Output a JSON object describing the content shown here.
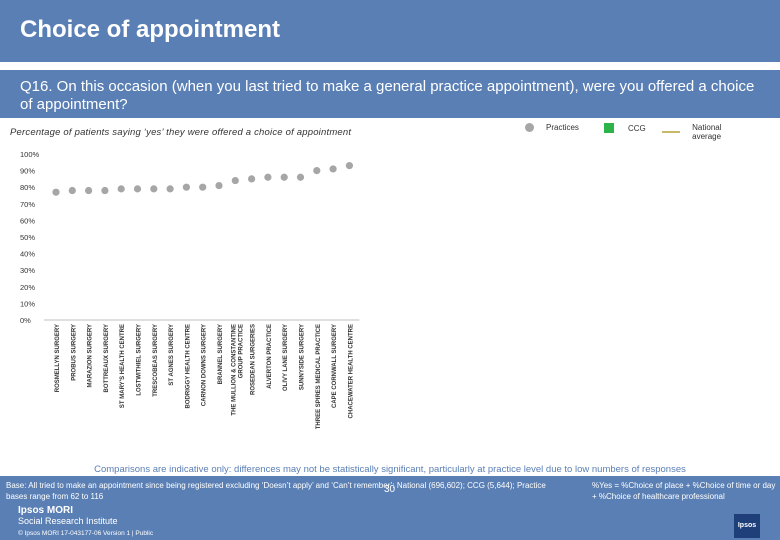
{
  "header": {
    "title": "Choice of appointment"
  },
  "question": "Q16. On this occasion (when you last tried to make a general practice appointment), were you offered a choice of appointment?",
  "subtitle": "Percentage of patients saying ‘yes’ they were offered a choice of appointment",
  "legend": {
    "practices": "Practices",
    "ccg": "CCG",
    "national": "National average"
  },
  "colors": {
    "header_bg": "#5a7fb4",
    "practice_marker": "#a6a6a6",
    "ccg": "#2db34a",
    "national": "#c8b96a"
  },
  "chart_data": {
    "type": "scatter",
    "y_tick_labels": [
      "0%",
      "10%",
      "20%",
      "30%",
      "40%",
      "50%",
      "60%",
      "70%",
      "80%",
      "90%",
      "100%"
    ],
    "ylim": [
      0,
      100
    ],
    "categories": [
      "ROSMELLYN SURGERY",
      "PROBUS SURGERY",
      "MARAZION SURGERY",
      "BOTTREAUX SURGERY",
      "ST MARY'S HEALTH CENTRE",
      "LOSTWITHIEL SURGERY",
      "TRESCOBEAS SURGERY",
      "ST AGNES SURGERY",
      "BODRIGGY HEALTH CENTRE",
      "CARNON DOWNS SURGERY",
      "BRANNEL SURGERY",
      "THE MULLION & CONSTANTINE GROUP PRACTICE",
      "ROSEDEAN SURGERIES",
      "ALVERTON PRACTICE",
      "OLIVY LANE SURGERY",
      "SUNNYSIDE SURGERY",
      "THREE SPIRES MEDICAL PRACTICE",
      "CAPE CORNWALL SURGERY",
      "CHACEWATER HEALTH CENTRE"
    ],
    "series": [
      {
        "name": "Practices",
        "values": [
          77,
          78,
          78,
          78,
          79,
          79,
          79,
          79,
          80,
          80,
          81,
          84,
          85,
          86,
          86,
          86,
          90,
          91,
          93
        ]
      }
    ]
  },
  "disclaimer": "Comparisons are indicative only: differences may not be statistically significant, particularly at practice level due to low numbers of responses",
  "footer": {
    "base": "Base: All tried to make an appointment since being registered excluding ‘Doesn’t apply’ and ‘Can’t remember’: National (696,602); CCG (5,644); Practice bases range from 62 to 116",
    "yes_definition": "%Yes = %Choice of place + %Choice of time or day + %Choice of healthcare professional",
    "page": "30",
    "logo_name": "Ipsos MORI",
    "logo_sub": "Social Research Institute",
    "copyright": "© Ipsos MORI     17-043177-06 Version 1 | Public",
    "badge": "Ipsos"
  }
}
